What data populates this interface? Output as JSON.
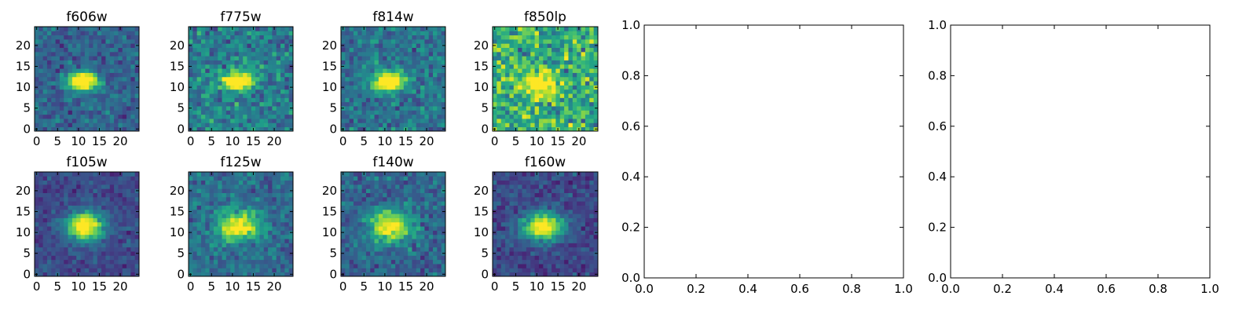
{
  "chart_data": [
    {
      "type": "heatmap",
      "title": "f606w",
      "shape": [
        25,
        25
      ],
      "colormap": "viridis",
      "source": {
        "center_x": 11.5,
        "center_y": 12,
        "sigma_x": 2.6,
        "sigma_y": 1.5,
        "peak": 1.0,
        "background": 0.32,
        "noise": 0.12
      },
      "xticks": [
        0,
        5,
        10,
        15,
        20
      ],
      "yticks": [
        0,
        5,
        10,
        15,
        20
      ],
      "xlim": [
        0,
        25
      ],
      "ylim": [
        0,
        25
      ]
    },
    {
      "type": "heatmap",
      "title": "f775w",
      "shape": [
        25,
        25
      ],
      "colormap": "viridis",
      "source": {
        "center_x": 11.5,
        "center_y": 12,
        "sigma_x": 2.6,
        "sigma_y": 1.6,
        "peak": 0.9,
        "background": 0.42,
        "noise": 0.16
      },
      "xticks": [
        0,
        5,
        10,
        15,
        20
      ],
      "yticks": [
        0,
        5,
        10,
        15,
        20
      ],
      "xlim": [
        0,
        25
      ],
      "ylim": [
        0,
        25
      ]
    },
    {
      "type": "heatmap",
      "title": "f814w",
      "shape": [
        25,
        25
      ],
      "colormap": "viridis",
      "source": {
        "center_x": 11.5,
        "center_y": 12,
        "sigma_x": 2.6,
        "sigma_y": 1.6,
        "peak": 0.95,
        "background": 0.38,
        "noise": 0.14
      },
      "xticks": [
        0,
        5,
        10,
        15,
        20
      ],
      "yticks": [
        0,
        5,
        10,
        15,
        20
      ],
      "xlim": [
        0,
        25
      ],
      "ylim": [
        0,
        25
      ]
    },
    {
      "type": "heatmap",
      "title": "f850lp",
      "shape": [
        25,
        25
      ],
      "colormap": "viridis",
      "source": {
        "center_x": 11.5,
        "center_y": 11.5,
        "sigma_x": 3.0,
        "sigma_y": 2.0,
        "peak": 0.55,
        "background": 0.62,
        "noise": 0.22
      },
      "xticks": [
        0,
        5,
        10,
        15,
        20
      ],
      "yticks": [
        0,
        5,
        10,
        15,
        20
      ],
      "xlim": [
        0,
        25
      ],
      "ylim": [
        0,
        25
      ]
    },
    {
      "type": "line",
      "title": "",
      "series": [],
      "xlim": [
        0.0,
        1.0
      ],
      "ylim": [
        0.0,
        1.0
      ],
      "xticks": [
        "0.0",
        "0.2",
        "0.4",
        "0.6",
        "0.8",
        "1.0"
      ],
      "yticks": [
        "0.0",
        "0.2",
        "0.4",
        "0.6",
        "0.8",
        "1.0"
      ]
    },
    {
      "type": "line",
      "title": "",
      "series": [],
      "xlim": [
        0.0,
        1.0
      ],
      "ylim": [
        0.0,
        1.0
      ],
      "xticks": [
        "0.0",
        "0.2",
        "0.4",
        "0.6",
        "0.8",
        "1.0"
      ],
      "yticks": [
        "0.0",
        "0.2",
        "0.4",
        "0.6",
        "0.8",
        "1.0"
      ]
    },
    {
      "type": "heatmap",
      "title": "f105w",
      "shape": [
        25,
        25
      ],
      "colormap": "viridis",
      "source": {
        "center_x": 12,
        "center_y": 12,
        "sigma_x": 3.2,
        "sigma_y": 2.4,
        "peak": 0.9,
        "background": 0.22,
        "noise": 0.09
      },
      "xticks": [
        0,
        5,
        10,
        15,
        20
      ],
      "yticks": [
        0,
        5,
        10,
        15,
        20
      ],
      "xlim": [
        0,
        25
      ],
      "ylim": [
        0,
        25
      ]
    },
    {
      "type": "heatmap",
      "title": "f125w",
      "shape": [
        25,
        25
      ],
      "colormap": "viridis",
      "source": {
        "center_x": 12,
        "center_y": 12,
        "sigma_x": 3.4,
        "sigma_y": 2.5,
        "peak": 0.75,
        "background": 0.35,
        "noise": 0.12
      },
      "xticks": [
        0,
        5,
        10,
        15,
        20
      ],
      "yticks": [
        0,
        5,
        10,
        15,
        20
      ],
      "xlim": [
        0,
        25
      ],
      "ylim": [
        0,
        25
      ]
    },
    {
      "type": "heatmap",
      "title": "f140w",
      "shape": [
        25,
        25
      ],
      "colormap": "viridis",
      "source": {
        "center_x": 12,
        "center_y": 12,
        "sigma_x": 3.4,
        "sigma_y": 2.5,
        "peak": 0.75,
        "background": 0.33,
        "noise": 0.12
      },
      "xticks": [
        0,
        5,
        10,
        15,
        20
      ],
      "yticks": [
        0,
        5,
        10,
        15,
        20
      ],
      "xlim": [
        0,
        25
      ],
      "ylim": [
        0,
        25
      ]
    },
    {
      "type": "heatmap",
      "title": "f160w",
      "shape": [
        25,
        25
      ],
      "colormap": "viridis",
      "source": {
        "center_x": 12,
        "center_y": 12,
        "sigma_x": 3.4,
        "sigma_y": 2.3,
        "peak": 0.85,
        "background": 0.22,
        "noise": 0.1
      },
      "xticks": [
        0,
        5,
        10,
        15,
        20
      ],
      "yticks": [
        0,
        5,
        10,
        15,
        20
      ],
      "xlim": [
        0,
        25
      ],
      "ylim": [
        0,
        25
      ]
    }
  ]
}
